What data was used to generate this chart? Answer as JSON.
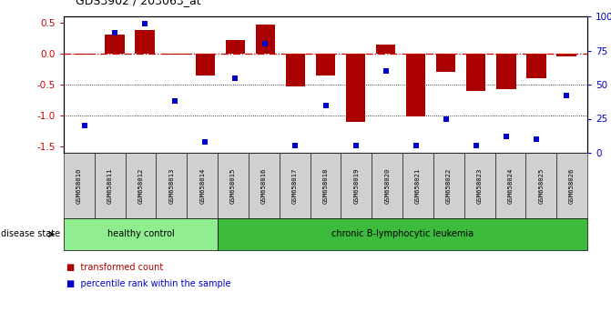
{
  "title": "GDS3902 / 203063_at",
  "samples": [
    "GSM658010",
    "GSM658011",
    "GSM658012",
    "GSM658013",
    "GSM658014",
    "GSM658015",
    "GSM658016",
    "GSM658017",
    "GSM658018",
    "GSM658019",
    "GSM658020",
    "GSM658021",
    "GSM658022",
    "GSM658023",
    "GSM658024",
    "GSM658025",
    "GSM658026"
  ],
  "bar_values": [
    -0.02,
    0.3,
    0.38,
    -0.01,
    -0.35,
    0.22,
    0.47,
    -0.53,
    -0.35,
    -1.1,
    0.15,
    -1.02,
    -0.3,
    -0.6,
    -0.58,
    -0.4,
    -0.05
  ],
  "dot_values": [
    20,
    88,
    95,
    38,
    8,
    55,
    80,
    5,
    35,
    5,
    60,
    5,
    25,
    5,
    12,
    10,
    42
  ],
  "group_labels": [
    "healthy control",
    "chronic B-lymphocytic leukemia"
  ],
  "group_split": 5,
  "bar_color": "#aa0000",
  "dot_color": "#0000cc",
  "ylim_left": [
    -1.6,
    0.6
  ],
  "ylim_right": [
    0,
    100
  ],
  "yticks_left": [
    -1.5,
    -1.0,
    -0.5,
    0.0,
    0.5
  ],
  "yticks_right": [
    0,
    25,
    50,
    75,
    100
  ],
  "hline_y": 0.0,
  "dotted_lines": [
    -0.5,
    -1.0
  ],
  "background_color": "#ffffff",
  "label_transformed": "transformed count",
  "label_percentile": "percentile rank within the sample",
  "disease_state_label": "disease state",
  "hc_color": "#90ee90",
  "cll_color": "#3dbb3d"
}
